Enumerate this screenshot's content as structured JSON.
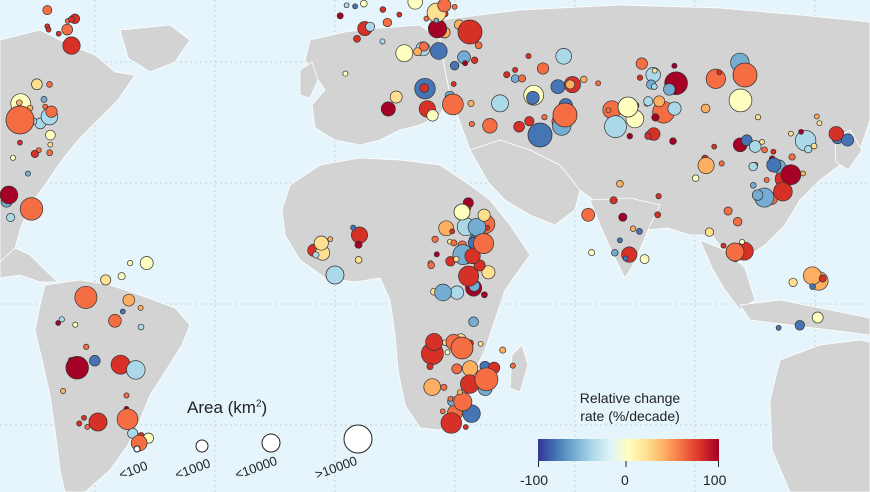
{
  "legend": {
    "area_title": "Area (km",
    "area_unit_sup": "2",
    "area_title_end": ")",
    "size_classes": [
      "<100",
      "<1000",
      "<10000",
      ">10000"
    ],
    "colorbar_title_line1": "Relative change",
    "colorbar_title_line2": "rate (%/decade)",
    "colorbar_ticks": [
      "-100",
      "0",
      "100"
    ],
    "colorbar_range": [
      -100,
      100
    ],
    "colorbar_colors": [
      "#313695",
      "#4575b4",
      "#74add1",
      "#abd9e9",
      "#e0f3f8",
      "#ffffbf",
      "#fee090",
      "#fdae61",
      "#f46d43",
      "#d73027",
      "#a50026"
    ]
  },
  "map": {
    "land_color": "#d3d3d3",
    "ocean_color": "#e6f4fb",
    "grid_color": "#c8d4dc",
    "lake_outline_color": "#333333"
  }
}
